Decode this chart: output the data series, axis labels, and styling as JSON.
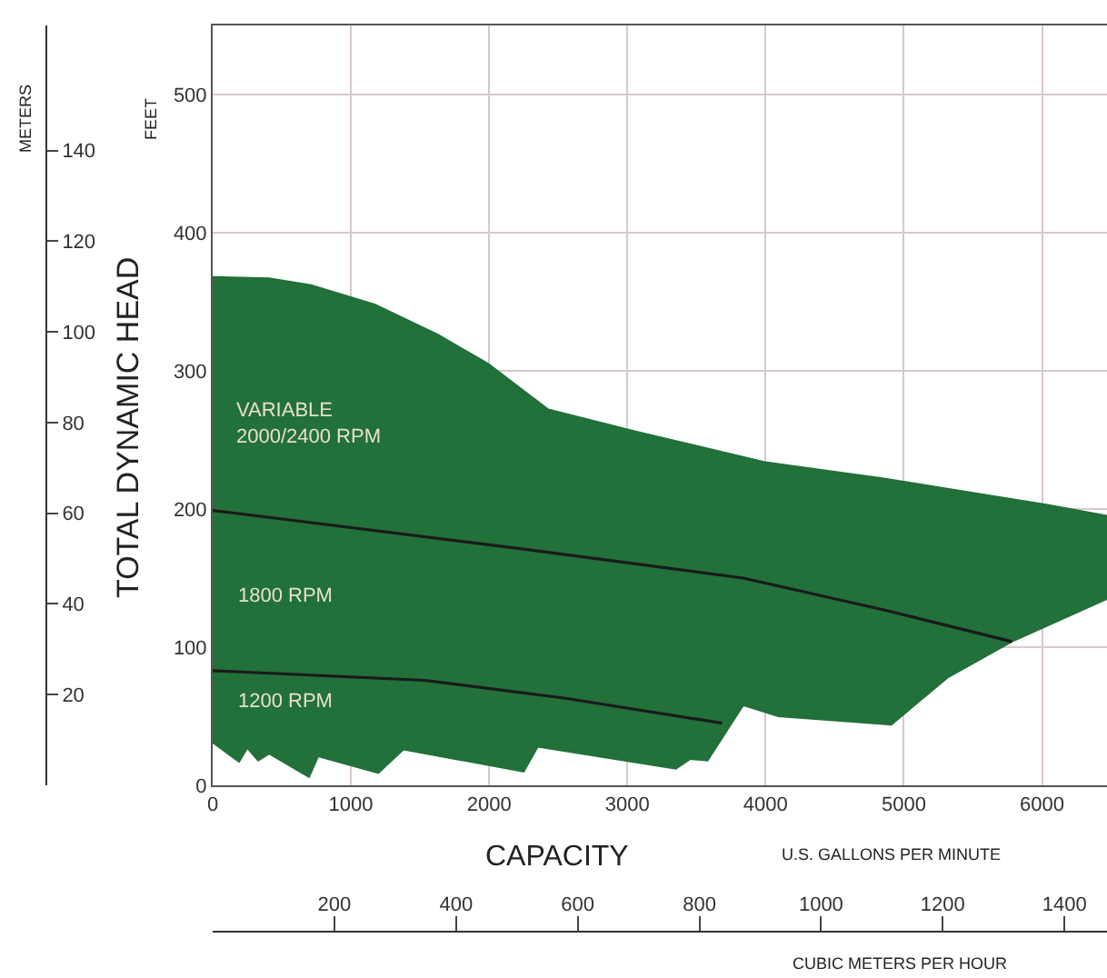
{
  "chart_data": {
    "type": "area",
    "xlabel": "U.S. GALLONS PER MINUTE",
    "ylabel": "FEET",
    "y2label": "METERS",
    "x2label": "CUBIC METERS PER HOUR",
    "annotations": [
      "TOTAL DYNAMIC HEAD",
      "CAPACITY",
      "VARIABLE\n2000/2400 RPM",
      "1800 RPM",
      "1200 RPM"
    ],
    "xlim": [
      0,
      6470
    ],
    "xticks": [
      0,
      1000,
      2000,
      3000,
      4000,
      5000,
      6000
    ],
    "ylim": [
      0,
      550
    ],
    "yticks": [
      0,
      100,
      200,
      300,
      400,
      500
    ],
    "y2lim": [
      0,
      167.6
    ],
    "y2ticks": [
      20,
      40,
      60,
      80,
      100,
      120,
      140
    ],
    "x2lim": [
      0,
      1470
    ],
    "x2ticks": [
      200,
      400,
      600,
      800,
      1000,
      1200,
      1400
    ],
    "grid": true,
    "marker": "none",
    "line_style": "solid",
    "series": [
      {
        "color": "#22703a",
        "x": [
          0,
          408,
          711,
          1171,
          1632,
          1994,
          2428,
          3066,
          3988,
          4856,
          6040,
          6470,
          6470,
          5782,
          5317,
          4910,
          4093,
          3838,
          3580,
          3453,
          3351,
          2352,
          2250,
          1380,
          1198,
          763,
          697,
          408,
          329,
          250,
          191,
          0,
          0
        ],
        "values": [
          368,
          367,
          362,
          348,
          326,
          305,
          272,
          256,
          234,
          222,
          203,
          195,
          135,
          104,
          78,
          44,
          50,
          58,
          18,
          19,
          12,
          28,
          10,
          26,
          9,
          21,
          6,
          23,
          18,
          27,
          17,
          31,
          368
        ]
      },
      {
        "type": "line",
        "color": "#1a1a1a",
        "x": [
          0,
          2250,
          3838,
          4856,
          5782
        ],
        "values": [
          199,
          171,
          150,
          127,
          104
        ]
      },
      {
        "type": "line",
        "color": "#1a1a1a",
        "x": [
          0,
          1533,
          2553,
          3685
        ],
        "values": [
          83,
          76,
          63,
          45
        ]
      }
    ]
  }
}
